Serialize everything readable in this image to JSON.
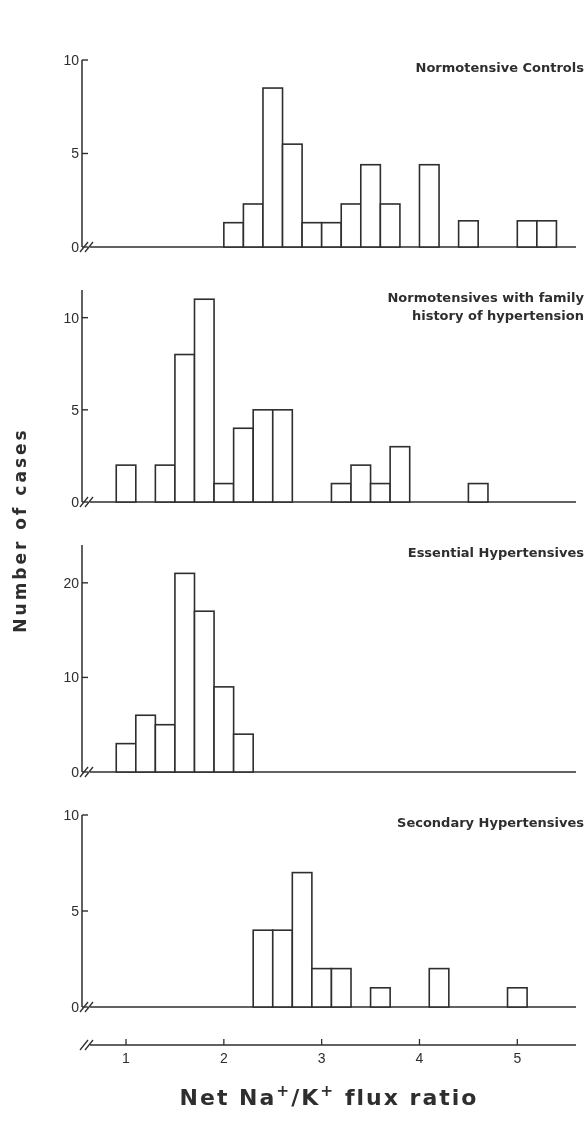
{
  "chart_data": [
    {
      "type": "histogram",
      "title": "Normotensive Controls",
      "bins": [
        2.0,
        2.2,
        2.4,
        2.6,
        2.8,
        3.0,
        3.2,
        3.4,
        3.6,
        3.8,
        4.0,
        4.2,
        4.4,
        4.6,
        5.0,
        5.2,
        5.4
      ],
      "values": [
        1.3,
        2.3,
        8.5,
        5.5,
        1.3,
        1.3,
        2.3,
        4.4,
        2.3,
        0,
        4.4,
        0,
        1.4,
        0,
        1.4,
        1.4
      ],
      "color": "#ffffff",
      "xlim": [
        0.55,
        5.6
      ],
      "ylim": [
        0,
        10
      ],
      "yticks": [
        0,
        5,
        10
      ],
      "tick_labels": "y"
    },
    {
      "type": "histogram",
      "title": "Normotensives with family history of hypertension",
      "ylabel": "Number of cases",
      "bins": [
        0.9,
        1.1,
        1.3,
        1.5,
        1.7,
        1.9,
        2.1,
        2.3,
        2.5,
        2.7,
        3.1,
        3.3,
        3.5,
        3.7,
        3.9,
        4.5,
        4.7
      ],
      "values": [
        2,
        0,
        2,
        8,
        11,
        1,
        4,
        5,
        5,
        0,
        1,
        2,
        1,
        3,
        0,
        1
      ],
      "color": "#ffffff",
      "xlim": [
        0.55,
        5.6
      ],
      "ylim": [
        0,
        11.5
      ],
      "yticks": [
        0,
        5,
        10
      ],
      "tick_labels": "y"
    },
    {
      "type": "histogram",
      "title": "Essential Hypertensives",
      "bins": [
        0.9,
        1.1,
        1.3,
        1.5,
        1.7,
        1.9,
        2.1,
        2.3
      ],
      "values": [
        3,
        6,
        5,
        21,
        17,
        9,
        4
      ],
      "color": "#ffffff",
      "xlim": [
        0.55,
        5.6
      ],
      "ylim": [
        0,
        24
      ],
      "yticks": [
        0,
        10,
        20
      ],
      "tick_labels": "y"
    },
    {
      "type": "histogram",
      "title": "Secondary Hypertensives",
      "xlabel": "Net Na$^{+}$/K$^{+}$ flux ratio",
      "bins": [
        2.3,
        2.5,
        2.7,
        2.9,
        3.1,
        3.3,
        3.5,
        3.7,
        4.1,
        4.3,
        4.9,
        5.1
      ],
      "values": [
        4,
        4,
        7,
        2,
        2,
        0,
        1,
        0,
        2,
        0,
        1
      ],
      "color": "#ffffff",
      "xlim": [
        0.55,
        5.6
      ],
      "xticks": [
        1,
        2,
        3,
        4,
        5
      ],
      "ylim": [
        0,
        10
      ],
      "yticks": [
        0,
        5,
        10
      ]
    }
  ]
}
